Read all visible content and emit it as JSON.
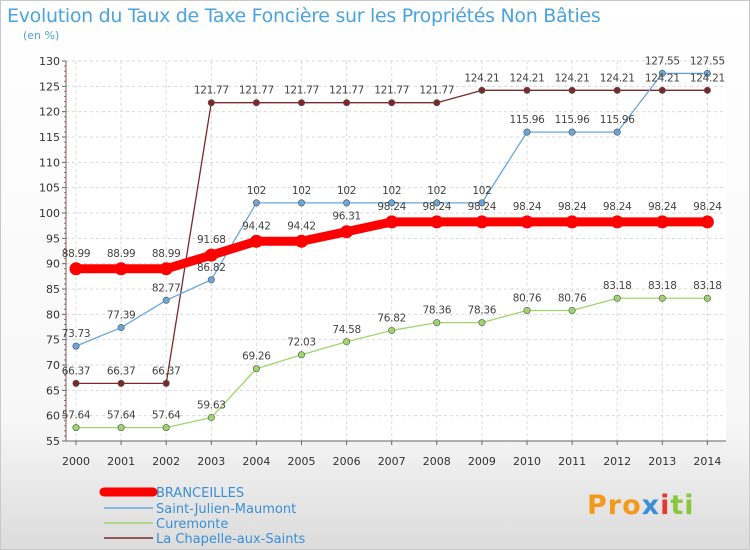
{
  "chart_data": {
    "type": "line",
    "title": "Evolution du Taux de Taxe Foncière sur les Propriétés Non Bâties",
    "ylabel": "(en %)",
    "xlabel": "",
    "x": [
      "2000",
      "2001",
      "2002",
      "2003",
      "2004",
      "2005",
      "2006",
      "2007",
      "2008",
      "2009",
      "2010",
      "2011",
      "2012",
      "2013",
      "2014"
    ],
    "ylim": [
      55,
      130
    ],
    "yticks": [
      55,
      60,
      65,
      70,
      75,
      80,
      85,
      90,
      95,
      100,
      105,
      110,
      115,
      120,
      125,
      130
    ],
    "series": [
      {
        "name": "BRANCEILLES",
        "color": "#ff0000",
        "values": [
          88.99,
          88.99,
          88.99,
          91.68,
          94.42,
          94.42,
          96.31,
          98.24,
          98.24,
          98.24,
          98.24,
          98.24,
          98.24,
          98.24,
          98.24
        ],
        "labels": [
          "88.99",
          "88.99",
          "88.99",
          "91.68",
          "94.42",
          "94.42",
          "96.31",
          "98.24",
          "98.24",
          "98.24",
          "98.24",
          "98.24",
          "98.24",
          "98.24",
          "98.24"
        ]
      },
      {
        "name": "Saint-Julien-Maumont",
        "color": "#6aa6da",
        "values": [
          73.73,
          77.39,
          82.77,
          86.82,
          102,
          102,
          102,
          102,
          102,
          102,
          115.96,
          115.96,
          115.96,
          127.55,
          127.55
        ],
        "labels": [
          "73.73",
          "77.39",
          "82.77",
          "86.82",
          "102",
          "102",
          "102",
          "102",
          "102",
          "102",
          "115.96",
          "115.96",
          "115.96",
          "127.55",
          "127.55"
        ]
      },
      {
        "name": "Curemonte",
        "color": "#9fd66b",
        "values": [
          57.64,
          57.64,
          57.64,
          59.63,
          69.26,
          72.03,
          74.58,
          76.82,
          78.36,
          78.36,
          80.76,
          80.76,
          83.18,
          83.18,
          83.18
        ],
        "labels": [
          "57.64",
          "57.64",
          "57.64",
          "59.63",
          "69.26",
          "72.03",
          "74.58",
          "76.82",
          "78.36",
          "78.36",
          "80.76",
          "80.76",
          "83.18",
          "83.18",
          "83.18"
        ]
      },
      {
        "name": "La Chapelle-aux-Saints",
        "color": "#7a2a2a",
        "values": [
          66.37,
          66.37,
          66.37,
          121.77,
          121.77,
          121.77,
          121.77,
          121.77,
          121.77,
          124.21,
          124.21,
          124.21,
          124.21,
          124.21,
          124.21
        ],
        "labels": [
          "66.37",
          "66.37",
          "66.37",
          "121.77",
          "121.77",
          "121.77",
          "121.77",
          "121.77",
          "121.77",
          "124.21",
          "124.21",
          "124.21",
          "124.21",
          "124.21",
          "124.21"
        ]
      }
    ],
    "legend_position": "bottom-left"
  },
  "logo": {
    "p1": "Pro",
    "p2": "x",
    "p3": "i",
    "p4": "ti"
  }
}
